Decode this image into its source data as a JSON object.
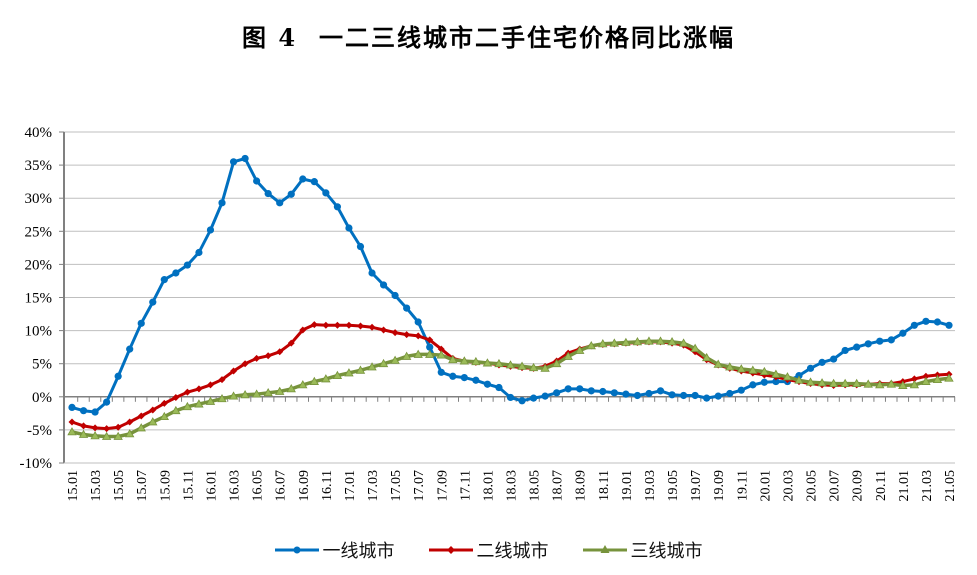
{
  "title": {
    "figure": "图 4",
    "text": "一二三线城市二手住宅价格同比涨幅"
  },
  "chart_data": {
    "type": "line",
    "title": "图 4 一二三线城市二手住宅价格同比涨幅",
    "xlabel": "",
    "ylabel": "",
    "ylim": [
      -10,
      40
    ],
    "yticks": [
      -10,
      -5,
      0,
      5,
      10,
      15,
      20,
      25,
      30,
      35,
      40
    ],
    "ytick_labels": [
      "-10%",
      "-5%",
      "0%",
      "5%",
      "10%",
      "15%",
      "20%",
      "25%",
      "30%",
      "35%",
      "40%"
    ],
    "xtick_labels": [
      "15.01",
      "15.03",
      "15.05",
      "15.07",
      "15.09",
      "15.11",
      "16.01",
      "16.03",
      "16.05",
      "16.07",
      "16.09",
      "16.11",
      "17.01",
      "17.03",
      "17.05",
      "17.07",
      "17.09",
      "17.11",
      "18.01",
      "18.03",
      "18.05",
      "18.07",
      "18.09",
      "18.11",
      "19.01",
      "19.03",
      "19.05",
      "19.07",
      "19.09",
      "19.11",
      "20.01",
      "20.03",
      "20.05",
      "20.07",
      "20.09",
      "20.11",
      "21.01",
      "21.03",
      "21.05"
    ],
    "grid": "horizontal",
    "legend_position": "bottom",
    "x": [
      "15.01",
      "15.02",
      "15.03",
      "15.04",
      "15.05",
      "15.06",
      "15.07",
      "15.08",
      "15.09",
      "15.10",
      "15.11",
      "15.12",
      "16.01",
      "16.02",
      "16.03",
      "16.04",
      "16.05",
      "16.06",
      "16.07",
      "16.08",
      "16.09",
      "16.10",
      "16.11",
      "16.12",
      "17.01",
      "17.02",
      "17.03",
      "17.04",
      "17.05",
      "17.06",
      "17.07",
      "17.08",
      "17.09",
      "17.10",
      "17.11",
      "17.12",
      "18.01",
      "18.02",
      "18.03",
      "18.04",
      "18.05",
      "18.06",
      "18.07",
      "18.08",
      "18.09",
      "18.10",
      "18.11",
      "18.12",
      "19.01",
      "19.02",
      "19.03",
      "19.04",
      "19.05",
      "19.06",
      "19.07",
      "19.08",
      "19.09",
      "19.10",
      "19.11",
      "19.12",
      "20.01",
      "20.02",
      "20.03",
      "20.04",
      "20.05",
      "20.06",
      "20.07",
      "20.08",
      "20.09",
      "20.10",
      "20.11",
      "20.12",
      "21.01",
      "21.02",
      "21.03",
      "21.04",
      "21.05"
    ],
    "series": [
      {
        "name": "一线城市",
        "color": "#0070c0",
        "marker": "circle",
        "values": [
          -1.6,
          -2.1,
          -2.3,
          -0.8,
          3.1,
          7.2,
          11.1,
          14.3,
          17.7,
          18.7,
          19.9,
          21.8,
          25.2,
          29.3,
          35.5,
          36.0,
          32.6,
          30.7,
          29.3,
          30.6,
          32.9,
          32.5,
          30.8,
          28.7,
          25.5,
          22.7,
          18.7,
          16.9,
          15.3,
          13.4,
          11.3,
          7.5,
          3.7,
          3.1,
          2.9,
          2.5,
          1.9,
          1.4,
          -0.1,
          -0.6,
          -0.2,
          0.1,
          0.6,
          1.2,
          1.2,
          0.9,
          0.8,
          0.6,
          0.4,
          0.2,
          0.5,
          0.9,
          0.3,
          0.2,
          0.2,
          -0.2,
          0.1,
          0.5,
          1.0,
          1.8,
          2.2,
          2.3,
          2.3,
          3.2,
          4.3,
          5.2,
          5.7,
          7.0,
          7.5,
          8.0,
          8.4,
          8.6,
          9.6,
          10.8,
          11.4,
          11.3,
          10.8
        ]
      },
      {
        "name": "二线城市",
        "color": "#c00000",
        "marker": "diamond",
        "values": [
          -3.8,
          -4.4,
          -4.7,
          -4.8,
          -4.6,
          -3.8,
          -2.9,
          -2.0,
          -1.0,
          -0.1,
          0.7,
          1.2,
          1.8,
          2.6,
          3.9,
          5.0,
          5.8,
          6.2,
          6.8,
          8.1,
          10.1,
          10.9,
          10.8,
          10.8,
          10.8,
          10.7,
          10.5,
          10.1,
          9.7,
          9.4,
          9.2,
          8.6,
          7.2,
          5.8,
          5.4,
          5.2,
          5.1,
          4.8,
          4.6,
          4.4,
          4.3,
          4.6,
          5.4,
          6.6,
          7.2,
          7.7,
          7.9,
          8.0,
          8.1,
          8.2,
          8.3,
          8.3,
          8.1,
          7.8,
          6.8,
          5.6,
          4.8,
          4.3,
          3.9,
          3.6,
          3.3,
          3.0,
          2.6,
          2.3,
          2.0,
          1.8,
          1.7,
          1.8,
          1.8,
          1.9,
          2.0,
          2.0,
          2.3,
          2.7,
          3.1,
          3.3,
          3.4
        ]
      },
      {
        "name": "三线城市",
        "color": "#77933c",
        "marker": "triangle",
        "values": [
          -5.3,
          -5.7,
          -5.9,
          -6.0,
          -6.0,
          -5.6,
          -4.7,
          -3.8,
          -3.0,
          -2.1,
          -1.5,
          -1.1,
          -0.7,
          -0.3,
          0.1,
          0.3,
          0.4,
          0.6,
          0.8,
          1.2,
          1.8,
          2.3,
          2.7,
          3.2,
          3.6,
          4.0,
          4.5,
          5.0,
          5.5,
          6.1,
          6.4,
          6.4,
          6.3,
          5.6,
          5.4,
          5.3,
          5.1,
          5.0,
          4.8,
          4.6,
          4.4,
          4.3,
          5.0,
          6.1,
          7.0,
          7.7,
          8.0,
          8.1,
          8.2,
          8.3,
          8.4,
          8.4,
          8.3,
          8.1,
          7.3,
          5.9,
          4.9,
          4.5,
          4.2,
          4.0,
          3.8,
          3.4,
          3.0,
          2.5,
          2.2,
          2.1,
          2.0,
          2.0,
          2.0,
          1.9,
          1.8,
          1.9,
          1.7,
          1.8,
          2.3,
          2.6,
          2.8
        ]
      }
    ]
  },
  "legend": {
    "items": [
      {
        "label": "一线城市",
        "color": "#0070c0"
      },
      {
        "label": "二线城市",
        "color": "#c00000"
      },
      {
        "label": "三线城市",
        "color": "#77933c"
      }
    ]
  }
}
